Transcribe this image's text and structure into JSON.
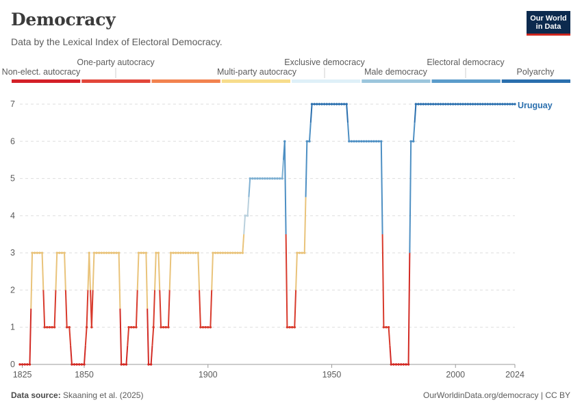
{
  "header": {
    "title": "Democracy",
    "subtitle": "Data by the Lexical Index of Electoral Democracy.",
    "logo_line1": "Our World",
    "logo_line2": "in Data"
  },
  "footer": {
    "source_label": "Data source:",
    "source_text": "Skaaning et al. (2025)",
    "link": "OurWorldinData.org/democracy | CC BY"
  },
  "chart_data": {
    "type": "line",
    "title": "Democracy",
    "subtitle": "Data by the Lexical Index of Electoral Democracy.",
    "xlabel": "",
    "ylabel": "",
    "xlim": [
      1824,
      2024
    ],
    "ylim": [
      0,
      7
    ],
    "x_ticks": [
      1825,
      1850,
      1900,
      1950,
      2000,
      2024
    ],
    "y_ticks": [
      0,
      1,
      2,
      3,
      4,
      5,
      6,
      7
    ],
    "grid": "horizontal-dashed",
    "legend": {
      "placement": "top",
      "type": "color-bins",
      "categories": [
        {
          "label": "Non-elect. autocracy",
          "value": 0,
          "color": "#d42028"
        },
        {
          "label": "One-party autocracy",
          "value": 1,
          "color": "#e2463a"
        },
        {
          "label": "Exclusive democracy",
          "value": 2,
          "color": "#f2824f"
        },
        {
          "label": "Multi-party autocracy",
          "value": 3,
          "color": "#f7dd8c"
        },
        {
          "label": "Exclusive democracy",
          "value": 4,
          "color": "#dff0f8"
        },
        {
          "label": "Male democracy",
          "value": 5,
          "color": "#9cc6dd"
        },
        {
          "label": "Electoral democracy",
          "value": 6,
          "color": "#5b9ccb"
        },
        {
          "label": "Polyarchy",
          "value": 7,
          "color": "#2a6fae"
        }
      ],
      "top_row_labels": [
        "One-party autocracy",
        "Exclusive democracy",
        "Electoral democracy"
      ],
      "bottom_row_labels": [
        "Non-elect. autocracy",
        "Multi-party autocracy",
        "Male democracy",
        "Polyarchy"
      ]
    },
    "series": [
      {
        "name": "Uruguay",
        "color": "#2a6fae",
        "segments": [
          {
            "years": [
              1824,
              1828
            ],
            "value": 0
          },
          {
            "years": [
              1829,
              1833
            ],
            "value": 3
          },
          {
            "years": [
              1834,
              1838
            ],
            "value": 1
          },
          {
            "years": [
              1839,
              1842
            ],
            "value": 3
          },
          {
            "years": [
              1843,
              1844
            ],
            "value": 1
          },
          {
            "years": [
              1845,
              1850
            ],
            "value": 0
          },
          {
            "years": [
              1851,
              1851
            ],
            "value": 1
          },
          {
            "years": [
              1852,
              1852
            ],
            "value": 3
          },
          {
            "years": [
              1853,
              1853
            ],
            "value": 1
          },
          {
            "years": [
              1854,
              1864
            ],
            "value": 3
          },
          {
            "years": [
              1865,
              1867
            ],
            "value": 0
          },
          {
            "years": [
              1868,
              1871
            ],
            "value": 1
          },
          {
            "years": [
              1872,
              1875
            ],
            "value": 3
          },
          {
            "years": [
              1876,
              1877
            ],
            "value": 0
          },
          {
            "years": [
              1878,
              1878
            ],
            "value": 1
          },
          {
            "years": [
              1879,
              1880
            ],
            "value": 3
          },
          {
            "years": [
              1881,
              1884
            ],
            "value": 1
          },
          {
            "years": [
              1885,
              1896
            ],
            "value": 3
          },
          {
            "years": [
              1897,
              1901
            ],
            "value": 1
          },
          {
            "years": [
              1902,
              1914
            ],
            "value": 3
          },
          {
            "years": [
              1915,
              1916
            ],
            "value": 4
          },
          {
            "years": [
              1917,
              1930
            ],
            "value": 5
          },
          {
            "years": [
              1931,
              1931
            ],
            "value": 6
          },
          {
            "years": [
              1932,
              1935
            ],
            "value": 1
          },
          {
            "years": [
              1936,
              1939
            ],
            "value": 3
          },
          {
            "years": [
              1940,
              1941
            ],
            "value": 6
          },
          {
            "years": [
              1942,
              1956
            ],
            "value": 7
          },
          {
            "years": [
              1957,
              1970
            ],
            "value": 6
          },
          {
            "years": [
              1971,
              1973
            ],
            "value": 1
          },
          {
            "years": [
              1974,
              1981
            ],
            "value": 0
          },
          {
            "years": [
              1982,
              1983
            ],
            "value": 6
          },
          {
            "years": [
              1984,
              2024
            ],
            "value": 7
          }
        ]
      }
    ]
  }
}
